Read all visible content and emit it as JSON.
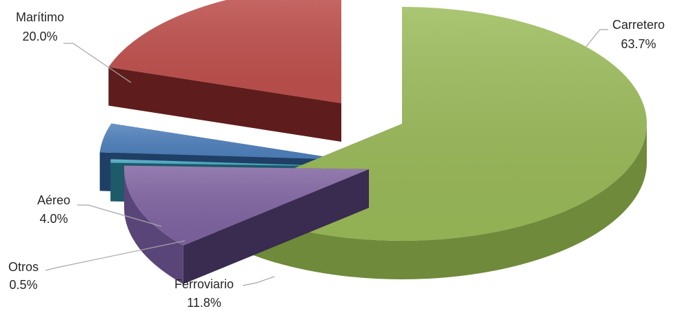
{
  "chart_data": {
    "type": "pie",
    "title": "",
    "slices": [
      {
        "label": "Carretero",
        "value": 63.7,
        "value_label": "63.7%",
        "color": "#9bbb59",
        "side_color": "#6e8a3a",
        "wall_color": "#3f5020"
      },
      {
        "label": "Ferroviario",
        "value": 11.8,
        "value_label": "11.8%",
        "color": "#8064a2",
        "side_color": "#5a4578",
        "wall_color": "#3a2b50"
      },
      {
        "label": "Otros",
        "value": 0.5,
        "value_label": "0.5%",
        "color": "#4bacc6",
        "side_color": "#2d7f95",
        "wall_color": "#1d5a6a"
      },
      {
        "label": "Aéreo",
        "value": 4.0,
        "value_label": "4.0%",
        "color": "#4f81bd",
        "side_color": "#2f5f96",
        "wall_color": "#203f66"
      },
      {
        "label": "Marítimo",
        "value": 20.0,
        "value_label": "20.0%",
        "color": "#c0504d",
        "side_color": "#9a3532",
        "wall_color": "#5e1d1c"
      }
    ]
  }
}
